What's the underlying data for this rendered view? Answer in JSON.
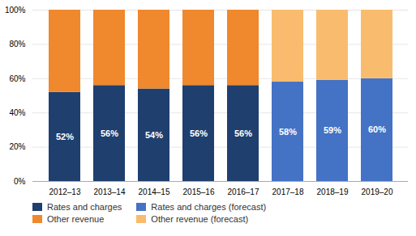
{
  "chart_data": {
    "type": "bar",
    "stacked": true,
    "categories": [
      "2012–13",
      "2013–14",
      "2014–15",
      "2015–16",
      "2016–17",
      "2017–18",
      "2018–19",
      "2019–20"
    ],
    "series": [
      {
        "name": "Rates and charges",
        "color": "#1f3f6e",
        "data_labels": true,
        "values": [
          52,
          56,
          54,
          56,
          56,
          null,
          null,
          null
        ],
        "value_labels": [
          "52%",
          "56%",
          "54%",
          "56%",
          "56%",
          null,
          null,
          null
        ]
      },
      {
        "name": "Other revenue",
        "color": "#f0882d",
        "values": [
          48,
          44,
          46,
          44,
          44,
          null,
          null,
          null
        ]
      },
      {
        "name": "Rates and charges (forecast)",
        "color": "#4472c4",
        "data_labels": true,
        "values": [
          null,
          null,
          null,
          null,
          null,
          58,
          59,
          60
        ],
        "value_labels": [
          null,
          null,
          null,
          null,
          null,
          "58%",
          "59%",
          "60%"
        ]
      },
      {
        "name": "Other revenue (forecast)",
        "color": "#f9bc6e",
        "values": [
          null,
          null,
          null,
          null,
          null,
          42,
          41,
          40
        ]
      }
    ],
    "ylim": [
      0,
      100
    ],
    "yticks": [
      {
        "value": 0,
        "label": "0%"
      },
      {
        "value": 20,
        "label": "20%"
      },
      {
        "value": 40,
        "label": "40%"
      },
      {
        "value": 60,
        "label": "60%"
      },
      {
        "value": 80,
        "label": "80%"
      },
      {
        "value": 100,
        "label": "100%"
      }
    ],
    "grid": true,
    "legend": "bottom"
  }
}
